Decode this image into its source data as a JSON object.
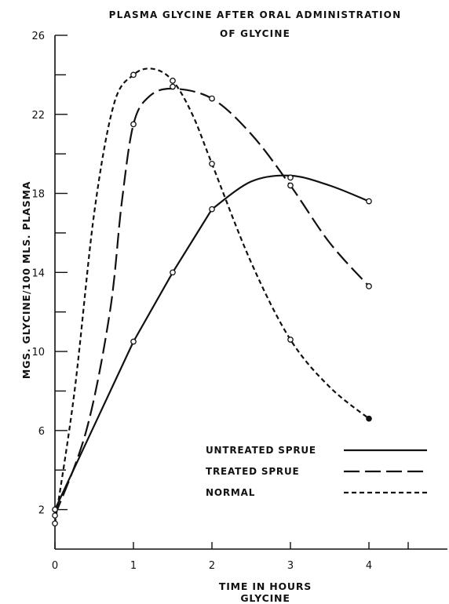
{
  "chart_data": {
    "type": "line",
    "title_line1": "PLASMA GLYCINE AFTER ORAL ADMINISTRATION",
    "title_line2": "OF GLYCINE",
    "xlabel": "TIME IN HOURS",
    "xlabel_sub": "GLYCINE",
    "ylabel": "MGS. GLYCINE/100 MLS. PLASMA",
    "xlim": [
      0,
      5
    ],
    "ylim": [
      0,
      26
    ],
    "x_ticks": [
      0,
      1,
      2,
      3,
      4
    ],
    "x_tick_labels": [
      "0",
      "1",
      "2",
      "3",
      "4"
    ],
    "y_ticks": [
      2,
      6,
      10,
      14,
      18,
      22,
      26
    ],
    "y_tick_labels": [
      "2",
      "6",
      "10",
      "14",
      "18",
      "22",
      "26"
    ],
    "grid": false,
    "legend_position": "right, lower-middle",
    "series": [
      {
        "name": "UNTREATED SPRUE",
        "dash": "solid",
        "points": [
          [
            0,
            2.0
          ],
          [
            1,
            10.5
          ],
          [
            1.5,
            14.0
          ],
          [
            2,
            17.2
          ],
          [
            3,
            18.8
          ],
          [
            4,
            17.6
          ]
        ],
        "curve": [
          [
            0,
            2.0
          ],
          [
            1,
            10.5
          ],
          [
            1.5,
            14.0
          ],
          [
            2,
            17.2
          ],
          [
            2.5,
            18.6
          ],
          [
            3,
            18.9
          ],
          [
            3.5,
            18.4
          ],
          [
            4,
            17.6
          ]
        ]
      },
      {
        "name": "TREATED SPRUE",
        "dash": "long-dash",
        "points": [
          [
            0,
            1.7
          ],
          [
            1,
            21.5
          ],
          [
            1.5,
            23.4
          ],
          [
            2,
            22.8
          ],
          [
            3,
            18.4
          ],
          [
            4,
            13.3
          ]
        ],
        "curve": [
          [
            0,
            1.7
          ],
          [
            0.4,
            6.0
          ],
          [
            0.7,
            12.0
          ],
          [
            0.85,
            17.5
          ],
          [
            1,
            21.5
          ],
          [
            1.2,
            22.9
          ],
          [
            1.5,
            23.3
          ],
          [
            2,
            22.8
          ],
          [
            2.5,
            21.0
          ],
          [
            3,
            18.4
          ],
          [
            3.5,
            15.5
          ],
          [
            4,
            13.3
          ]
        ]
      },
      {
        "name": "NORMAL",
        "dash": "short-dash",
        "points": [
          [
            0,
            1.3
          ],
          [
            1,
            24.0
          ],
          [
            1.5,
            23.7
          ],
          [
            2,
            19.5
          ],
          [
            3,
            10.6
          ],
          [
            4,
            6.6
          ]
        ],
        "curve": [
          [
            0,
            1.3
          ],
          [
            0.25,
            8.0
          ],
          [
            0.5,
            17.0
          ],
          [
            0.75,
            22.5
          ],
          [
            1,
            24.0
          ],
          [
            1.25,
            24.3
          ],
          [
            1.5,
            23.7
          ],
          [
            1.75,
            22.0
          ],
          [
            2,
            19.5
          ],
          [
            2.5,
            14.5
          ],
          [
            3,
            10.6
          ],
          [
            3.5,
            8.2
          ],
          [
            4,
            6.6
          ]
        ]
      }
    ],
    "legend": [
      {
        "label": "UNTREATED SPRUE",
        "dash": "solid"
      },
      {
        "label": "TREATED SPRUE",
        "dash": "long-dash"
      },
      {
        "label": "NORMAL",
        "dash": "short-dash"
      }
    ]
  }
}
